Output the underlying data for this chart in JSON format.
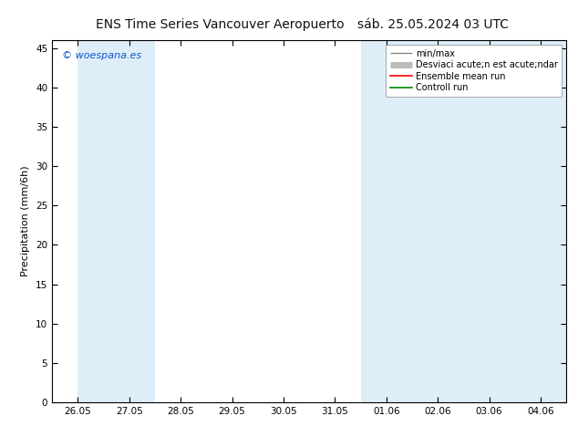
{
  "title": "ENS Time Series Vancouver Aeropuerto",
  "subtitle": "sáb. 25.05.2024 03 UTC",
  "ylabel": "Precipitation (mm/6h)",
  "ylim": [
    0,
    46
  ],
  "yticks": [
    0,
    5,
    10,
    15,
    20,
    25,
    30,
    35,
    40,
    45
  ],
  "xtick_labels": [
    "26.05",
    "27.05",
    "28.05",
    "29.05",
    "30.05",
    "31.05",
    "01.06",
    "02.06",
    "03.06",
    "04.06"
  ],
  "xtick_positions": [
    0,
    1,
    2,
    3,
    4,
    5,
    6,
    7,
    8,
    9
  ],
  "shaded_bands": [
    [
      0,
      0.5
    ],
    [
      0.5,
      1.5
    ],
    [
      5.5,
      7.5
    ],
    [
      7.5,
      8.5
    ],
    [
      8.5,
      9.5
    ]
  ],
  "shaded_color": "#ddeef8",
  "background_color": "#ffffff",
  "plot_bg_color": "#ffffff",
  "legend_items": [
    "min/max",
    "Desviaci acute;n est acute;ndar",
    "Ensemble mean run",
    "Controll run"
  ],
  "legend_colors": [
    "#888888",
    "#bbbbbb",
    "#ff0000",
    "#008800"
  ],
  "watermark": "woespana.es",
  "title_fontsize": 10,
  "tick_fontsize": 7.5,
  "ylabel_fontsize": 8
}
